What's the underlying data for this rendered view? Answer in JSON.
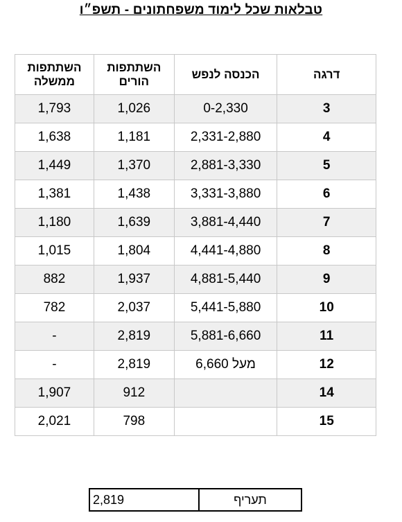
{
  "title": "טבלאות שכל לימוד משפחתונים  - תשפ״ו",
  "table": {
    "headers": {
      "grade": "דרגה",
      "income": "הכנסה לנפש",
      "parents": "השתתפות הורים",
      "gov": "השתתפות ממשלה"
    },
    "rows": [
      {
        "grade": "3",
        "income": "0-2,330",
        "parents": "1,026",
        "gov": "1,793"
      },
      {
        "grade": "4",
        "income": "2,331-2,880",
        "parents": "1,181",
        "gov": "1,638"
      },
      {
        "grade": "5",
        "income": "2,881-3,330",
        "parents": "1,370",
        "gov": "1,449"
      },
      {
        "grade": "6",
        "income": "3,331-3,880",
        "parents": "1,438",
        "gov": "1,381"
      },
      {
        "grade": "7",
        "income": "3,881-4,440",
        "parents": "1,639",
        "gov": "1,180"
      },
      {
        "grade": "8",
        "income": "4,441-4,880",
        "parents": "1,804",
        "gov": "1,015"
      },
      {
        "grade": "9",
        "income": "4,881-5,440",
        "parents": "1,937",
        "gov": "882"
      },
      {
        "grade": "10",
        "income": "5,441-5,880",
        "parents": "2,037",
        "gov": "782"
      },
      {
        "grade": "11",
        "income": "5,881-6,660",
        "parents": "2,819",
        "gov": "-"
      },
      {
        "grade": "12",
        "income": "מעל 6,660",
        "parents": "2,819",
        "gov": "-"
      },
      {
        "grade": "14",
        "income": "",
        "parents": "912",
        "gov": "1,907"
      },
      {
        "grade": "15",
        "income": "",
        "parents": "798",
        "gov": "2,021"
      }
    ]
  },
  "rate": {
    "label": "תעריף",
    "value": "2,819"
  }
}
